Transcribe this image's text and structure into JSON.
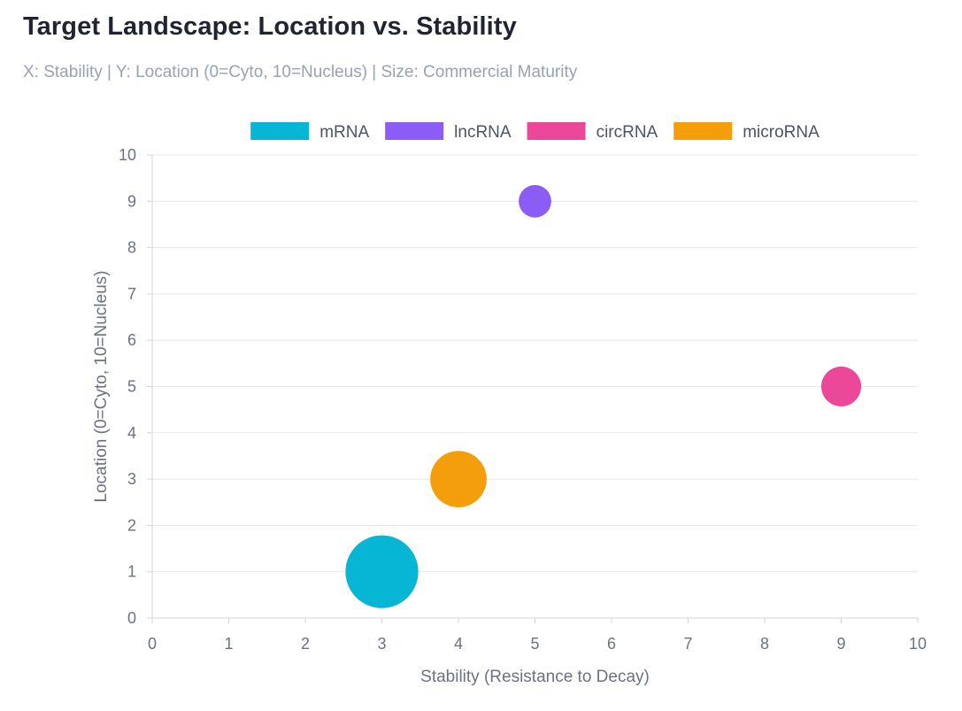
{
  "header": {
    "title": "Target Landscape: Location vs. Stability",
    "subtitle": "X: Stability | Y: Location (0=Cyto, 10=Nucleus) | Size: Commercial Maturity"
  },
  "chart_data": {
    "type": "scatter",
    "variant": "bubble",
    "title": "Target Landscape: Location vs. Stability",
    "subtitle": "X: Stability | Y: Location (0=Cyto, 10=Nucleus) | Size: Commercial Maturity",
    "xlabel": "Stability (Resistance to Decay)",
    "ylabel": "Location (0=Cyto, 10=Nucleus)",
    "xlim": [
      0,
      10
    ],
    "ylim": [
      0,
      10
    ],
    "xticks": [
      "0",
      "1",
      "2",
      "3",
      "4",
      "5",
      "6",
      "7",
      "8",
      "9",
      "10"
    ],
    "yticks": [
      "0",
      "1",
      "2",
      "3",
      "4",
      "5",
      "6",
      "7",
      "8",
      "9",
      "10"
    ],
    "grid": "horizontal",
    "legend_position": "top",
    "series": [
      {
        "name": "mRNA",
        "color": "#06b6d4",
        "points": [
          {
            "x": 3,
            "y": 1,
            "size": 10
          }
        ]
      },
      {
        "name": "lncRNA",
        "color": "#8b5cf6",
        "points": [
          {
            "x": 5,
            "y": 9,
            "size": 2
          }
        ]
      },
      {
        "name": "circRNA",
        "color": "#ec4899",
        "points": [
          {
            "x": 9,
            "y": 5,
            "size": 3
          }
        ]
      },
      {
        "name": "microRNA",
        "color": "#f59e0b",
        "points": [
          {
            "x": 4,
            "y": 3,
            "size": 6
          }
        ]
      }
    ]
  }
}
